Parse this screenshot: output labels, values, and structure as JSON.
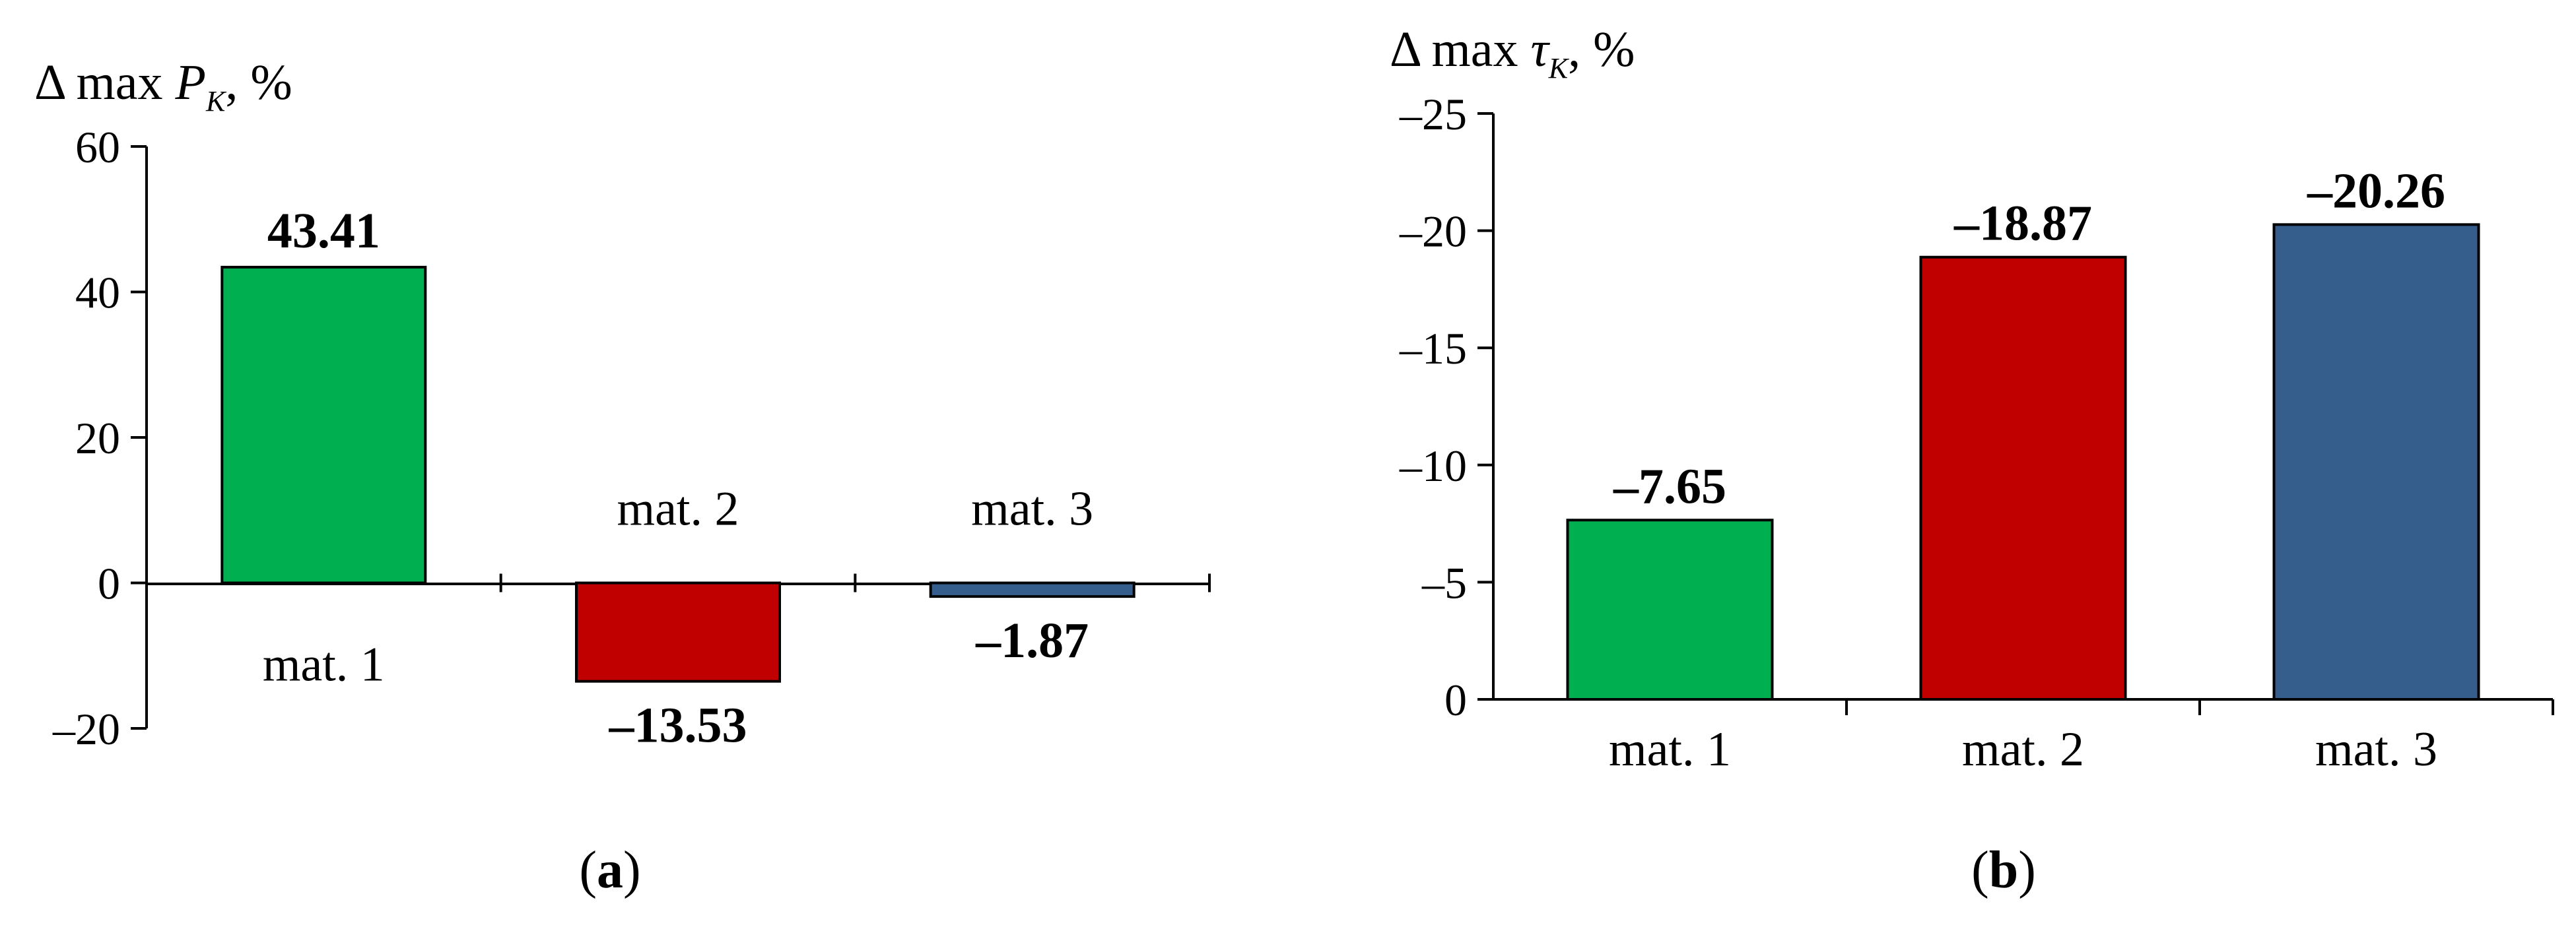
{
  "colors": {
    "mat1": "#00b050",
    "mat2": "#c00000",
    "mat3": "#355e8d"
  },
  "chart_data": [
    {
      "type": "bar",
      "ylabel": {
        "prefix": "Δ max ",
        "var": "P",
        "sub": "K",
        "suffix": ", %"
      },
      "categories": [
        "mat. 1",
        "mat. 2",
        "mat. 3"
      ],
      "values": [
        43.41,
        -13.53,
        -1.87
      ],
      "value_labels": [
        "43.41",
        "–13.53",
        "–1.87"
      ],
      "ylim": [
        -20,
        60
      ],
      "yticks": [
        60,
        40,
        20,
        0,
        -20
      ],
      "ytick_labels": [
        "60",
        "40",
        "20",
        "0",
        "–20"
      ],
      "panel_label": {
        "open": "(",
        "letter": "a",
        "close": ")"
      }
    },
    {
      "type": "bar",
      "ylabel": {
        "prefix": "Δ max ",
        "var": "τ",
        "sub": "K",
        "suffix": ", %"
      },
      "categories": [
        "mat. 1",
        "mat. 2",
        "mat. 3"
      ],
      "values": [
        -7.65,
        -18.87,
        -20.26
      ],
      "value_labels": [
        "–7.65",
        "–18.87",
        "–20.26"
      ],
      "ylim": [
        0,
        -25
      ],
      "yticks": [
        -25,
        -20,
        -15,
        -10,
        -5,
        0
      ],
      "ytick_labels": [
        "–25",
        "–20",
        "–15",
        "–10",
        "–5",
        "0"
      ],
      "panel_label": {
        "open": "(",
        "letter": "b",
        "close": ")"
      }
    }
  ]
}
